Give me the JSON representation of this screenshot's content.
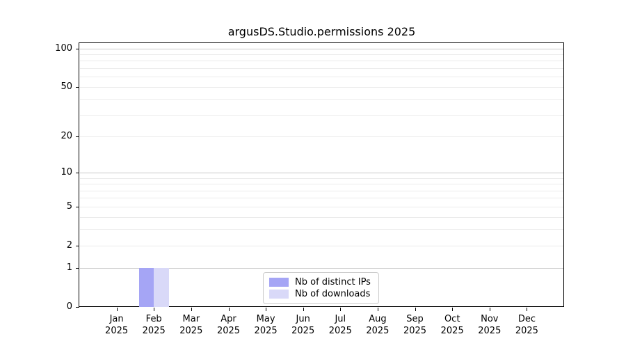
{
  "chart_data": {
    "type": "bar",
    "title": "argusDS.Studio.permissions 2025",
    "categories": [
      "Jan 2025",
      "Feb 2025",
      "Mar 2025",
      "Apr 2025",
      "May 2025",
      "Jun 2025",
      "Jul 2025",
      "Aug 2025",
      "Sep 2025",
      "Oct 2025",
      "Nov 2025",
      "Dec 2025"
    ],
    "series": [
      {
        "name": "Nb of distinct IPs",
        "color": "#a5a5f5",
        "values": [
          0,
          1,
          0,
          0,
          0,
          0,
          0,
          0,
          0,
          0,
          0,
          0
        ]
      },
      {
        "name": "Nb of downloads",
        "color": "#d9d9f8",
        "values": [
          0,
          1,
          0,
          0,
          0,
          0,
          0,
          0,
          0,
          0,
          0,
          0
        ]
      }
    ],
    "xlabel": "",
    "ylabel": "",
    "yscale": "log1p",
    "ylim": [
      0,
      110
    ],
    "yticks": [
      0,
      1,
      2,
      5,
      10,
      20,
      50,
      100
    ],
    "grid": {
      "on": true,
      "major": [
        1,
        10,
        100
      ],
      "minor": [
        2,
        3,
        4,
        5,
        6,
        7,
        8,
        9,
        20,
        30,
        40,
        50,
        60,
        70,
        80,
        90
      ]
    },
    "legend": {
      "position": "lower center"
    },
    "colors": {
      "axis": "#000000",
      "grid_major": "#c9c9c9",
      "grid_minor": "#ebebeb",
      "legend_border": "#cccccc",
      "background": "#ffffff"
    }
  }
}
